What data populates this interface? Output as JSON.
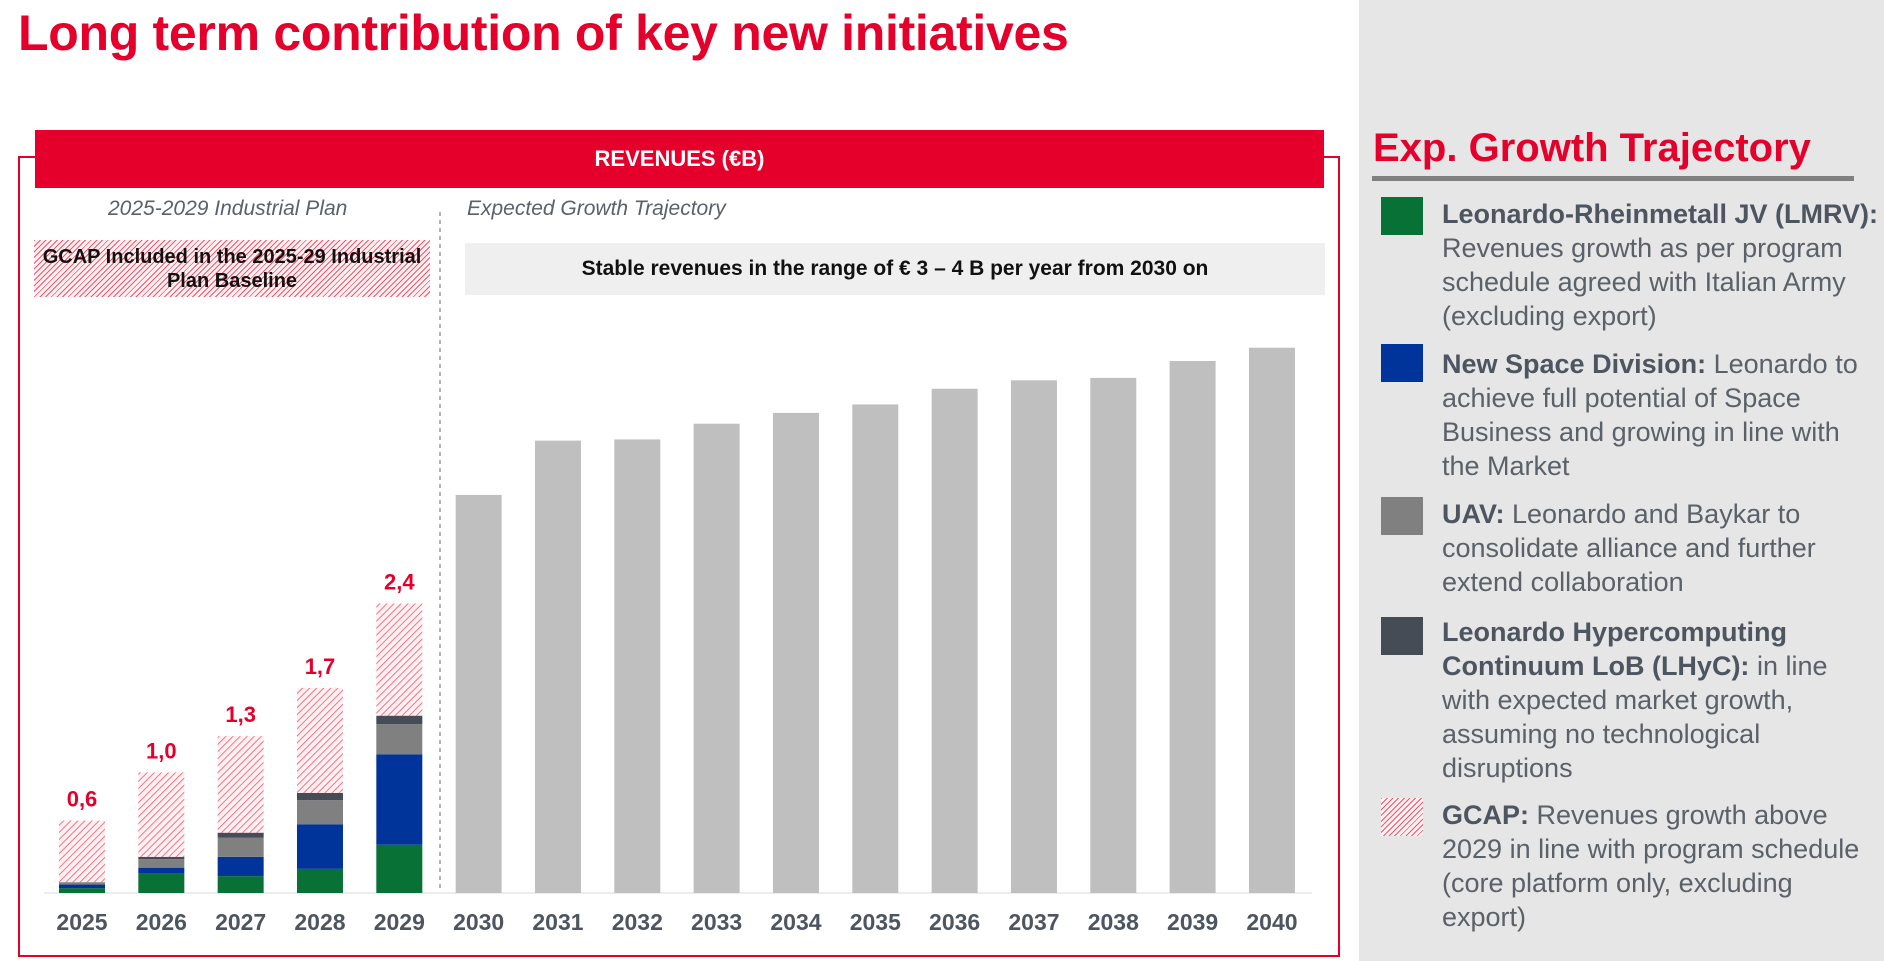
{
  "page": {
    "title": "Long term contribution of key new initiatives"
  },
  "chart_banner": "REVENUES (€B)",
  "sections": {
    "plan_label": "2025-2029 Industrial Plan",
    "trajectory_label": "Expected Growth Trajectory",
    "gcap_note": "GCAP Included in the 2025-29 Industrial Plan Baseline",
    "stable_note": "Stable revenues in the range of € 3 – 4  B per year from 2030 on"
  },
  "right_panel": {
    "title": "Exp. Growth Trajectory",
    "items": [
      {
        "bold": "Leonardo-Rheinmetall JV (LMRV):",
        "text": " Revenues growth as per program schedule agreed with Italian Army (excluding export)",
        "color": "#087236"
      },
      {
        "bold": "New Space Division:",
        "text": " Leonardo to achieve full potential of Space Business and growing in line with the Market",
        "color": "#00349a"
      },
      {
        "bold": "UAV:",
        "text": " Leonardo and Baykar to consolidate alliance and further extend collaboration",
        "color": "#808080"
      },
      {
        "bold": "Leonardo Hypercomputing Continuum LoB (LHyC):",
        "text": " in line with expected market growth, assuming no technological disruptions",
        "color": "#454c55"
      },
      {
        "bold": "GCAP:",
        "text": " Revenues growth above 2029 in line with program schedule (core platform only, excluding export)",
        "color": "#f0566c"
      }
    ]
  },
  "chart_data": {
    "type": "bar",
    "title": "REVENUES (€B)",
    "categories": [
      "2025",
      "2026",
      "2027",
      "2028",
      "2029",
      "2030",
      "2031",
      "2032",
      "2033",
      "2034",
      "2035",
      "2036",
      "2037",
      "2038",
      "2039",
      "2040"
    ],
    "stacked_series": [
      {
        "name": "Leonardo-Rheinmetall JV (LMRV)",
        "color": "#087236",
        "values": [
          0.04,
          0.16,
          0.14,
          0.2,
          0.4
        ]
      },
      {
        "name": "New Space Division",
        "color": "#00349a",
        "values": [
          0.03,
          0.05,
          0.16,
          0.37,
          0.75
        ]
      },
      {
        "name": "UAV",
        "color": "#808080",
        "values": [
          0.02,
          0.07,
          0.16,
          0.2,
          0.25
        ]
      },
      {
        "name": "Leonardo Hypercomputing Continuum LoB (LHyC)",
        "color": "#454c55",
        "values": [
          0.0,
          0.02,
          0.04,
          0.06,
          0.07
        ]
      },
      {
        "name": "GCAP",
        "color": "#f0566c",
        "values": [
          0.51,
          0.7,
          0.8,
          0.87,
          0.93
        ]
      }
    ],
    "totals": [
      0.6,
      1.0,
      1.3,
      1.7,
      2.4
    ],
    "total_labels": [
      "0,6",
      "1,0",
      "1,3",
      "1,7",
      "2,4"
    ],
    "trajectory_values": [
      3.3,
      3.75,
      3.76,
      3.89,
      3.98,
      4.05,
      4.18,
      4.25,
      4.27,
      4.41,
      4.52
    ],
    "ylim": [
      0,
      4.75
    ],
    "grid": false,
    "colors": {
      "trajectory": "#bfbfbf",
      "label_red": "#e4002b",
      "tick": "#4d5560"
    }
  }
}
